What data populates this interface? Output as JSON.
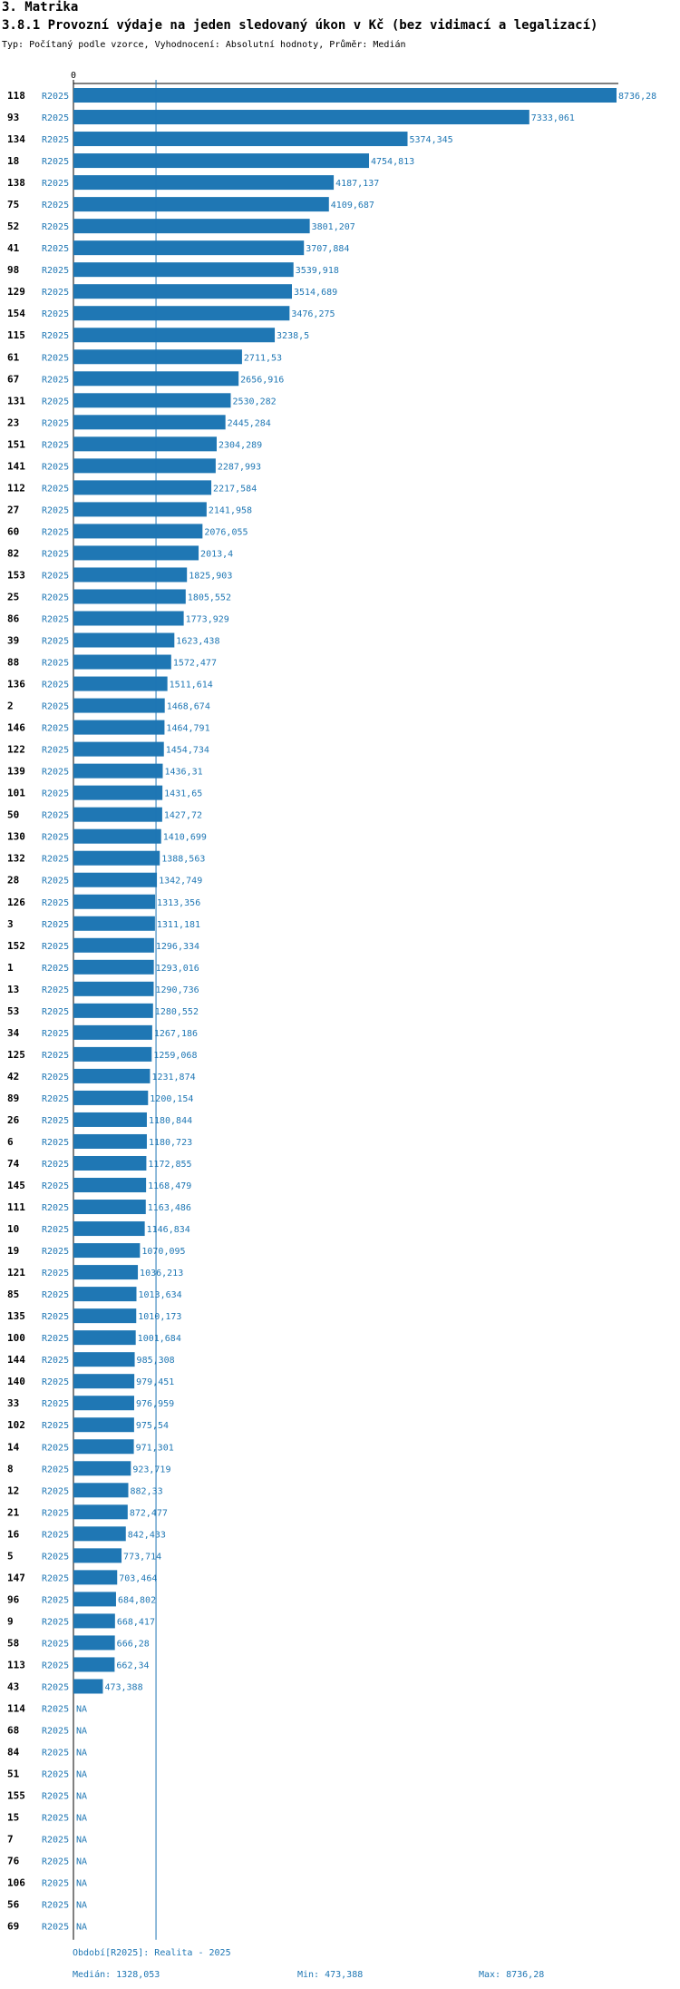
{
  "section_title": "3. Matrika",
  "chart_data": {
    "type": "bar",
    "orientation": "horizontal",
    "title": "3.8.1 Provozní výdaje na jeden sledovaný úkon v Kč (bez vidimací a legalizací)",
    "subtitle": "Typ: Počítaný podle vzorce, Vyhodnocení: Absolutní hodnoty, Průměr: Medián",
    "period_label": "R2025",
    "axis_start_label": "0",
    "xlim": [
      0,
      8736.28
    ],
    "median": 1328.053,
    "bar_color": "#1f77b4",
    "na_label": "NA",
    "rows": [
      {
        "id": "118",
        "value": 8736.28,
        "label": "8736,28"
      },
      {
        "id": "93",
        "value": 7333.061,
        "label": "7333,061"
      },
      {
        "id": "134",
        "value": 5374.345,
        "label": "5374,345"
      },
      {
        "id": "18",
        "value": 4754.813,
        "label": "4754,813"
      },
      {
        "id": "138",
        "value": 4187.137,
        "label": "4187,137"
      },
      {
        "id": "75",
        "value": 4109.687,
        "label": "4109,687"
      },
      {
        "id": "52",
        "value": 3801.207,
        "label": "3801,207"
      },
      {
        "id": "41",
        "value": 3707.884,
        "label": "3707,884"
      },
      {
        "id": "98",
        "value": 3539.918,
        "label": "3539,918"
      },
      {
        "id": "129",
        "value": 3514.689,
        "label": "3514,689"
      },
      {
        "id": "154",
        "value": 3476.275,
        "label": "3476,275"
      },
      {
        "id": "115",
        "value": 3238.5,
        "label": "3238,5"
      },
      {
        "id": "61",
        "value": 2711.53,
        "label": "2711,53"
      },
      {
        "id": "67",
        "value": 2656.916,
        "label": "2656,916"
      },
      {
        "id": "131",
        "value": 2530.282,
        "label": "2530,282"
      },
      {
        "id": "23",
        "value": 2445.284,
        "label": "2445,284"
      },
      {
        "id": "151",
        "value": 2304.289,
        "label": "2304,289"
      },
      {
        "id": "141",
        "value": 2287.993,
        "label": "2287,993"
      },
      {
        "id": "112",
        "value": 2217.584,
        "label": "2217,584"
      },
      {
        "id": "27",
        "value": 2141.958,
        "label": "2141,958"
      },
      {
        "id": "60",
        "value": 2076.055,
        "label": "2076,055"
      },
      {
        "id": "82",
        "value": 2013.4,
        "label": "2013,4"
      },
      {
        "id": "153",
        "value": 1825.903,
        "label": "1825,903"
      },
      {
        "id": "25",
        "value": 1805.552,
        "label": "1805,552"
      },
      {
        "id": "86",
        "value": 1773.929,
        "label": "1773,929"
      },
      {
        "id": "39",
        "value": 1623.438,
        "label": "1623,438"
      },
      {
        "id": "88",
        "value": 1572.477,
        "label": "1572,477"
      },
      {
        "id": "136",
        "value": 1511.614,
        "label": "1511,614"
      },
      {
        "id": "2",
        "value": 1468.674,
        "label": "1468,674"
      },
      {
        "id": "146",
        "value": 1464.791,
        "label": "1464,791"
      },
      {
        "id": "122",
        "value": 1454.734,
        "label": "1454,734"
      },
      {
        "id": "139",
        "value": 1436.31,
        "label": "1436,31"
      },
      {
        "id": "101",
        "value": 1431.65,
        "label": "1431,65"
      },
      {
        "id": "50",
        "value": 1427.72,
        "label": "1427,72"
      },
      {
        "id": "130",
        "value": 1410.699,
        "label": "1410,699"
      },
      {
        "id": "132",
        "value": 1388.563,
        "label": "1388,563"
      },
      {
        "id": "28",
        "value": 1342.749,
        "label": "1342,749"
      },
      {
        "id": "126",
        "value": 1313.356,
        "label": "1313,356"
      },
      {
        "id": "3",
        "value": 1311.181,
        "label": "1311,181"
      },
      {
        "id": "152",
        "value": 1296.334,
        "label": "1296,334"
      },
      {
        "id": "1",
        "value": 1293.016,
        "label": "1293,016"
      },
      {
        "id": "13",
        "value": 1290.736,
        "label": "1290,736"
      },
      {
        "id": "53",
        "value": 1280.552,
        "label": "1280,552"
      },
      {
        "id": "34",
        "value": 1267.186,
        "label": "1267,186"
      },
      {
        "id": "125",
        "value": 1259.068,
        "label": "1259,068"
      },
      {
        "id": "42",
        "value": 1231.874,
        "label": "1231,874"
      },
      {
        "id": "89",
        "value": 1200.154,
        "label": "1200,154"
      },
      {
        "id": "26",
        "value": 1180.844,
        "label": "1180,844"
      },
      {
        "id": "6",
        "value": 1180.723,
        "label": "1180,723"
      },
      {
        "id": "74",
        "value": 1172.855,
        "label": "1172,855"
      },
      {
        "id": "145",
        "value": 1168.479,
        "label": "1168,479"
      },
      {
        "id": "111",
        "value": 1163.486,
        "label": "1163,486"
      },
      {
        "id": "10",
        "value": 1146.834,
        "label": "1146,834"
      },
      {
        "id": "19",
        "value": 1070.095,
        "label": "1070,095"
      },
      {
        "id": "121",
        "value": 1036.213,
        "label": "1036,213"
      },
      {
        "id": "85",
        "value": 1013.634,
        "label": "1013,634"
      },
      {
        "id": "135",
        "value": 1010.173,
        "label": "1010,173"
      },
      {
        "id": "100",
        "value": 1001.684,
        "label": "1001,684"
      },
      {
        "id": "144",
        "value": 985.308,
        "label": "985,308"
      },
      {
        "id": "140",
        "value": 979.451,
        "label": "979,451"
      },
      {
        "id": "33",
        "value": 976.959,
        "label": "976,959"
      },
      {
        "id": "102",
        "value": 975.54,
        "label": "975,54"
      },
      {
        "id": "14",
        "value": 971.301,
        "label": "971,301"
      },
      {
        "id": "8",
        "value": 923.719,
        "label": "923,719"
      },
      {
        "id": "12",
        "value": 882.33,
        "label": "882,33"
      },
      {
        "id": "21",
        "value": 872.477,
        "label": "872,477"
      },
      {
        "id": "16",
        "value": 842.433,
        "label": "842,433"
      },
      {
        "id": "5",
        "value": 773.714,
        "label": "773,714"
      },
      {
        "id": "147",
        "value": 703.464,
        "label": "703,464"
      },
      {
        "id": "96",
        "value": 684.802,
        "label": "684,802"
      },
      {
        "id": "9",
        "value": 668.417,
        "label": "668,417"
      },
      {
        "id": "58",
        "value": 666.28,
        "label": "666,28"
      },
      {
        "id": "113",
        "value": 662.34,
        "label": "662,34"
      },
      {
        "id": "43",
        "value": 473.388,
        "label": "473,388"
      },
      {
        "id": "114",
        "value": null,
        "label": "NA"
      },
      {
        "id": "68",
        "value": null,
        "label": "NA"
      },
      {
        "id": "84",
        "value": null,
        "label": "NA"
      },
      {
        "id": "51",
        "value": null,
        "label": "NA"
      },
      {
        "id": "155",
        "value": null,
        "label": "NA"
      },
      {
        "id": "15",
        "value": null,
        "label": "NA"
      },
      {
        "id": "7",
        "value": null,
        "label": "NA"
      },
      {
        "id": "76",
        "value": null,
        "label": "NA"
      },
      {
        "id": "106",
        "value": null,
        "label": "NA"
      },
      {
        "id": "56",
        "value": null,
        "label": "NA"
      },
      {
        "id": "69",
        "value": null,
        "label": "NA"
      }
    ]
  },
  "footer": {
    "period_text": "Období[R2025]: Realita - 2025",
    "median_text": "Medián: 1328,053",
    "min_text": "Min: 473,388",
    "max_text": "Max: 8736,28"
  }
}
